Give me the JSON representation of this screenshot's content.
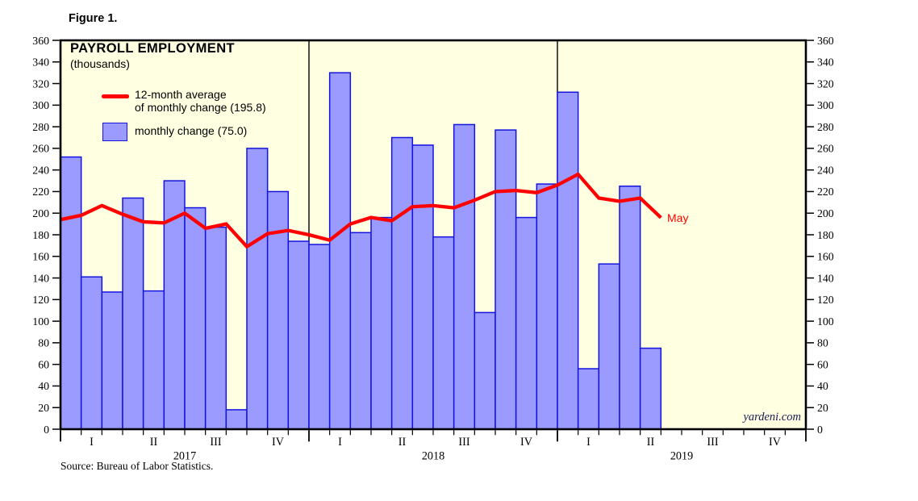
{
  "figure_label": "Figure 1.",
  "title": "PAYROLL EMPLOYMENT",
  "subtitle": "(thousands)",
  "legend": {
    "line_label_1": "12-month average",
    "line_label_2": "of monthly change (195.8)",
    "bar_label": "monthly change (75.0)"
  },
  "annotations": {
    "last_point_label": "May"
  },
  "watermark": "yardeni.com",
  "source": "Source: Bureau of Labor Statistics.",
  "colors": {
    "plot_bg": "#ffffe1",
    "bar_fill": "#9a9aff",
    "bar_stroke": "#1414e0",
    "line_color": "#ff0000",
    "frame": "#000000",
    "text": "#000000",
    "watermark_color": "#1c1c55"
  },
  "chart_data": {
    "type": "bar+line",
    "title": "PAYROLL EMPLOYMENT",
    "units": "thousands",
    "ylim": [
      0,
      360
    ],
    "ytick_step": 20,
    "grid": "off",
    "legend_position": "top-left-inside",
    "total_month_slots": 36,
    "years": [
      {
        "label": "2017",
        "quarters": [
          "I",
          "II",
          "III",
          "IV"
        ]
      },
      {
        "label": "2018",
        "quarters": [
          "I",
          "II",
          "III",
          "IV"
        ]
      },
      {
        "label": "2019",
        "quarters": [
          "I",
          "II",
          "III",
          "IV"
        ]
      }
    ],
    "bar_series": {
      "name": "monthly change",
      "last_value_label": 75.0,
      "values": [
        252,
        141,
        127,
        214,
        128,
        230,
        205,
        187,
        18,
        260,
        220,
        174,
        171,
        330,
        182,
        196,
        270,
        263,
        178,
        282,
        108,
        277,
        196,
        227,
        312,
        56,
        153,
        225,
        75
      ]
    },
    "line_series": {
      "name": "12-month average of monthly change",
      "last_value_label": 195.8,
      "lead_in_value": 194,
      "values": [
        198,
        207,
        199,
        192,
        191,
        200,
        186,
        190,
        169,
        181,
        184,
        180,
        175,
        190,
        196,
        193,
        206,
        207,
        205,
        212,
        220,
        221,
        219,
        226,
        236,
        214,
        211,
        214,
        195.8
      ]
    }
  }
}
